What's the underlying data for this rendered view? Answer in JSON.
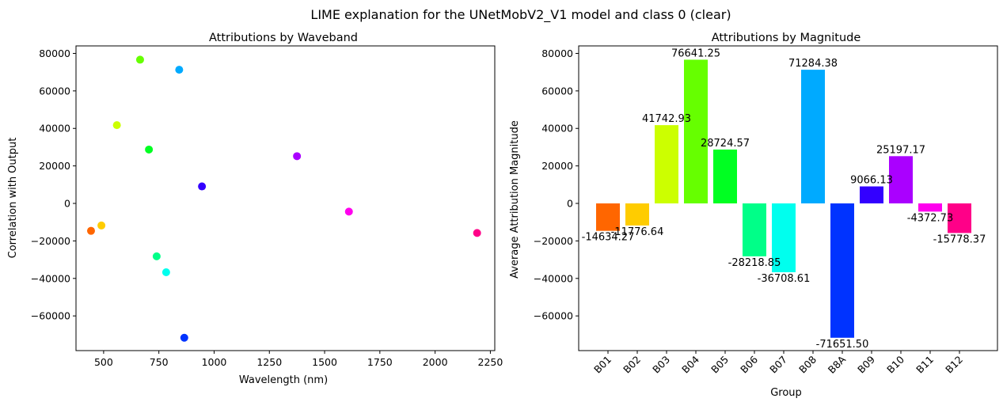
{
  "figure": {
    "suptitle": "LIME explanation for the UNetMobV2_V1 model and class 0 (clear)"
  },
  "chart_data": [
    {
      "type": "scatter",
      "title": "Attributions by Waveband",
      "xlabel": "Wavelength (nm)",
      "ylabel": "Correlation with Output",
      "xlim": [
        375,
        2270
      ],
      "ylim": [
        -78500,
        84000
      ],
      "xticks": [
        500,
        750,
        1000,
        1250,
        1500,
        1750,
        2000,
        2250
      ],
      "xtick_labels": [
        "500",
        "750",
        "1000",
        "1250",
        "1500",
        "1750",
        "2000",
        "2250"
      ],
      "yticks": [
        -60000,
        -40000,
        -20000,
        0,
        20000,
        40000,
        60000,
        80000
      ],
      "ytick_labels": [
        "−60000",
        "−40000",
        "−20000",
        "0",
        "20000",
        "40000",
        "60000",
        "80000"
      ],
      "points": [
        {
          "band": "B01",
          "x": 443,
          "y": -14634.27,
          "color": "#ff6600"
        },
        {
          "band": "B02",
          "x": 490,
          "y": -11776.64,
          "color": "#ffcc00"
        },
        {
          "band": "B03",
          "x": 560,
          "y": 41742.93,
          "color": "#ccff00"
        },
        {
          "band": "B04",
          "x": 665,
          "y": 76641.25,
          "color": "#66ff00"
        },
        {
          "band": "B05",
          "x": 705,
          "y": 28724.57,
          "color": "#00ff22"
        },
        {
          "band": "B06",
          "x": 740,
          "y": -28218.85,
          "color": "#00ff88"
        },
        {
          "band": "B07",
          "x": 783,
          "y": -36708.61,
          "color": "#00ffee"
        },
        {
          "band": "B08",
          "x": 842,
          "y": 71284.38,
          "color": "#00aaff"
        },
        {
          "band": "B8A",
          "x": 865,
          "y": -71651.5,
          "color": "#0033ff"
        },
        {
          "band": "B09",
          "x": 945,
          "y": 9066.13,
          "color": "#3300ff"
        },
        {
          "band": "B10",
          "x": 1375,
          "y": 25197.17,
          "color": "#aa00ff"
        },
        {
          "band": "B11",
          "x": 1610,
          "y": -4372.73,
          "color": "#ff00ee"
        },
        {
          "band": "B12",
          "x": 2190,
          "y": -15778.37,
          "color": "#ff0088"
        }
      ]
    },
    {
      "type": "bar",
      "title": "Attributions by Magnitude",
      "xlabel": "Group",
      "ylabel": "Average Attribution Magnitude",
      "ylim": [
        -78500,
        84000
      ],
      "yticks": [
        -60000,
        -40000,
        -20000,
        0,
        20000,
        40000,
        60000,
        80000
      ],
      "ytick_labels": [
        "−60000",
        "−40000",
        "−20000",
        "0",
        "20000",
        "40000",
        "60000",
        "80000"
      ],
      "categories": [
        "B01",
        "B02",
        "B03",
        "B04",
        "B05",
        "B06",
        "B07",
        "B08",
        "B8A",
        "B09",
        "B10",
        "B11",
        "B12"
      ],
      "values": [
        -14634.27,
        -11776.64,
        41742.93,
        76641.25,
        28724.57,
        -28218.85,
        -36708.61,
        71284.38,
        -71651.5,
        9066.13,
        25197.17,
        -4372.73,
        -15778.37
      ],
      "value_labels": [
        "-14634.27",
        "-11776.64",
        "41742.93",
        "76641.25",
        "28724.57",
        "-28218.85",
        "-36708.61",
        "71284.38",
        "-71651.50",
        "9066.13",
        "25197.17",
        "-4372.73",
        "-15778.37"
      ],
      "colors": [
        "#ff6600",
        "#ffcc00",
        "#ccff00",
        "#66ff00",
        "#00ff22",
        "#00ff88",
        "#00ffee",
        "#00aaff",
        "#0033ff",
        "#3300ff",
        "#aa00ff",
        "#ff00ee",
        "#ff0088"
      ]
    }
  ]
}
